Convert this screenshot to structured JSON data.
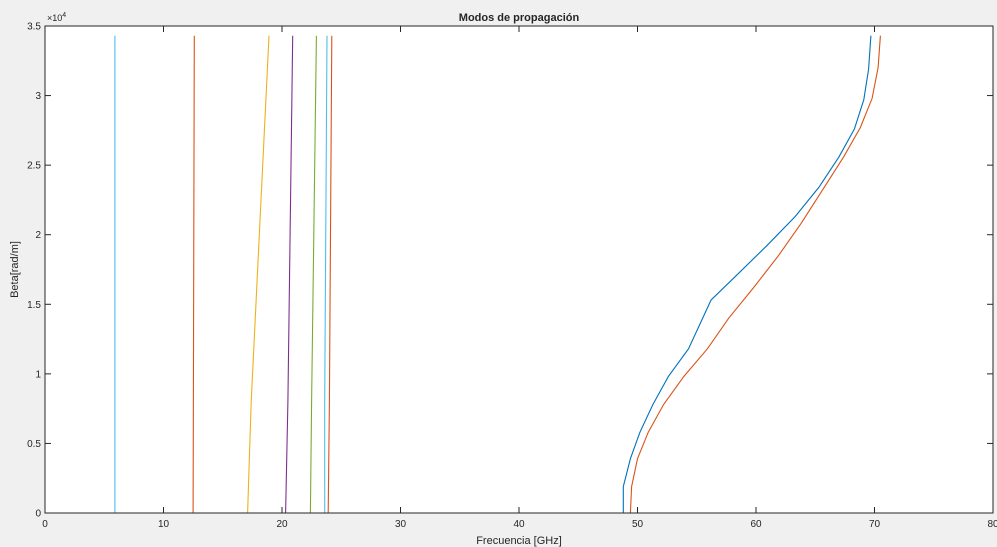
{
  "chart_data": {
    "type": "line",
    "title": "Modos de propagación",
    "xlabel": "Frecuencia [GHz]",
    "ylabel": "Beta[rad/m]",
    "exponent_label": "×10",
    "exponent_power": "4",
    "xlim": [
      0,
      80
    ],
    "ylim": [
      0,
      35000
    ],
    "x_ticks": [
      0,
      10,
      20,
      30,
      40,
      50,
      60,
      70,
      80
    ],
    "x_tick_labels": [
      "0",
      "10",
      "20",
      "30",
      "40",
      "50",
      "60",
      "70",
      "80"
    ],
    "y_ticks": [
      0,
      5000,
      10000,
      15000,
      20000,
      25000,
      30000,
      35000
    ],
    "y_tick_labels": [
      "0",
      "0.5",
      "1",
      "1.5",
      "2",
      "2.5",
      "3",
      "3.5"
    ],
    "grid": false,
    "series": [
      {
        "color": "#4DBEEE",
        "x": [
          5.9,
          5.9
        ],
        "y": [
          0,
          34300
        ]
      },
      {
        "color": "#D95319",
        "x": [
          12.5,
          12.6
        ],
        "y": [
          0,
          34300
        ]
      },
      {
        "color": "#EDB120",
        "x": [
          17.1,
          17.4,
          18.9
        ],
        "y": [
          0,
          8000,
          34300
        ]
      },
      {
        "color": "#7E2F8E",
        "x": [
          20.3,
          20.5,
          20.9
        ],
        "y": [
          0,
          8000,
          34300
        ]
      },
      {
        "color": "#77AC30",
        "x": [
          22.4,
          22.5,
          22.9
        ],
        "y": [
          0,
          8000,
          34300
        ]
      },
      {
        "color": "#4DBEEE",
        "x": [
          23.6,
          23.6,
          23.8
        ],
        "y": [
          0,
          8000,
          34300
        ]
      },
      {
        "color": "#D95319",
        "x": [
          23.9,
          24.0,
          24.2
        ],
        "y": [
          0,
          8000,
          34300
        ]
      },
      {
        "color": "#0072BD",
        "x": [
          48.8,
          48.8,
          49.4,
          50.2,
          51.3,
          52.6,
          54.3,
          56.2,
          58.5,
          60.9,
          63.3,
          65.3,
          67.0,
          68.3,
          69.1,
          69.5,
          69.7
        ],
        "y": [
          0,
          1900,
          3900,
          5800,
          7800,
          9800,
          11800,
          15300,
          17200,
          19200,
          21300,
          23400,
          25600,
          27600,
          29700,
          31900,
          34300
        ]
      },
      {
        "color": "#D95319",
        "x": [
          49.4,
          49.5,
          50.0,
          50.9,
          52.2,
          53.9,
          55.9,
          57.7,
          59.8,
          61.9,
          63.8,
          65.6,
          67.4,
          68.8,
          69.8,
          70.3,
          70.5
        ],
        "y": [
          0,
          1900,
          3900,
          5800,
          7800,
          9800,
          11800,
          14000,
          16200,
          18500,
          20800,
          23200,
          25600,
          27700,
          29800,
          32000,
          34300
        ]
      }
    ]
  }
}
